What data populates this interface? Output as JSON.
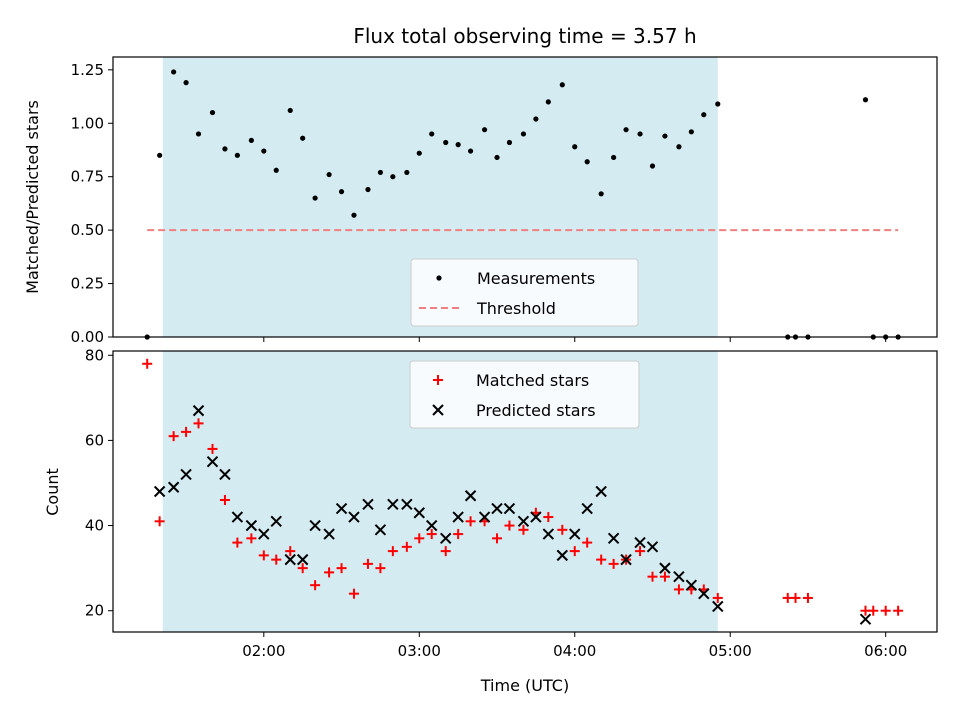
{
  "chart_data": [
    {
      "type": "scatter",
      "title": "Flux total observing time = 3.57 h",
      "xlabel": "",
      "ylabel": "Matched/Predicted stars",
      "x_unit": "hours UTC",
      "xlim": [
        1.03,
        6.33
      ],
      "ylim": [
        0,
        1.31
      ],
      "yticks": [
        0,
        0.25,
        0.5,
        0.75,
        1.0,
        1.25
      ],
      "ytick_labels": [
        "0.00",
        "0.25",
        "0.50",
        "0.75",
        "1.00",
        "1.25"
      ],
      "observing_window": [
        1.35,
        4.92
      ],
      "observing_window_color": "#add8e6",
      "legend_position": "lower-center",
      "series": [
        {
          "name": "Measurements",
          "style": "dot",
          "color": "#000000",
          "points": [
            [
              1.25,
              0.0
            ],
            [
              1.33,
              0.85
            ],
            [
              1.42,
              1.24
            ],
            [
              1.5,
              1.19
            ],
            [
              1.58,
              0.95
            ],
            [
              1.67,
              1.05
            ],
            [
              1.75,
              0.88
            ],
            [
              1.83,
              0.85
            ],
            [
              1.92,
              0.92
            ],
            [
              2.0,
              0.87
            ],
            [
              2.08,
              0.78
            ],
            [
              2.17,
              1.06
            ],
            [
              2.25,
              0.93
            ],
            [
              2.33,
              0.65
            ],
            [
              2.42,
              0.76
            ],
            [
              2.5,
              0.68
            ],
            [
              2.58,
              0.57
            ],
            [
              2.67,
              0.69
            ],
            [
              2.75,
              0.77
            ],
            [
              2.83,
              0.75
            ],
            [
              2.92,
              0.77
            ],
            [
              3.0,
              0.86
            ],
            [
              3.08,
              0.95
            ],
            [
              3.17,
              0.91
            ],
            [
              3.25,
              0.9
            ],
            [
              3.33,
              0.87
            ],
            [
              3.42,
              0.97
            ],
            [
              3.5,
              0.84
            ],
            [
              3.58,
              0.91
            ],
            [
              3.67,
              0.95
            ],
            [
              3.75,
              1.02
            ],
            [
              3.83,
              1.1
            ],
            [
              3.92,
              1.18
            ],
            [
              4.0,
              0.89
            ],
            [
              4.08,
              0.82
            ],
            [
              4.17,
              0.67
            ],
            [
              4.25,
              0.84
            ],
            [
              4.33,
              0.97
            ],
            [
              4.42,
              0.95
            ],
            [
              4.5,
              0.8
            ],
            [
              4.58,
              0.94
            ],
            [
              4.67,
              0.89
            ],
            [
              4.75,
              0.96
            ],
            [
              4.83,
              1.04
            ],
            [
              4.92,
              1.09
            ],
            [
              5.37,
              0.0
            ],
            [
              5.42,
              0.0
            ],
            [
              5.5,
              0.0
            ],
            [
              5.87,
              1.11
            ],
            [
              5.92,
              0.0
            ],
            [
              6.0,
              0.0
            ],
            [
              6.08,
              0.0
            ]
          ]
        },
        {
          "name": "Threshold",
          "style": "dashed-line",
          "color": "#f08080",
          "points": [
            [
              1.25,
              0.5
            ],
            [
              6.08,
              0.5
            ]
          ]
        }
      ]
    },
    {
      "type": "scatter",
      "title": "",
      "xlabel": "Time (UTC)",
      "ylabel": "Count",
      "x_unit": "hours UTC",
      "xlim": [
        1.03,
        6.33
      ],
      "ylim": [
        15,
        81
      ],
      "yticks": [
        20,
        40,
        60,
        80
      ],
      "ytick_labels": [
        "20",
        "40",
        "60",
        "80"
      ],
      "xticks": [
        2,
        3,
        4,
        5,
        6
      ],
      "xtick_labels": [
        "02:00",
        "03:00",
        "04:00",
        "05:00",
        "06:00"
      ],
      "observing_window": [
        1.35,
        4.92
      ],
      "observing_window_color": "#add8e6",
      "legend_position": "upper-center",
      "series": [
        {
          "name": "Matched stars",
          "marker": "plus",
          "color": "#ff0000",
          "points": [
            [
              1.25,
              78
            ],
            [
              1.33,
              41
            ],
            [
              1.42,
              61
            ],
            [
              1.5,
              62
            ],
            [
              1.58,
              64
            ],
            [
              1.67,
              58
            ],
            [
              1.75,
              46
            ],
            [
              1.83,
              36
            ],
            [
              1.92,
              37
            ],
            [
              2.0,
              33
            ],
            [
              2.08,
              32
            ],
            [
              2.17,
              34
            ],
            [
              2.25,
              30
            ],
            [
              2.33,
              26
            ],
            [
              2.42,
              29
            ],
            [
              2.5,
              30
            ],
            [
              2.58,
              24
            ],
            [
              2.67,
              31
            ],
            [
              2.75,
              30
            ],
            [
              2.83,
              34
            ],
            [
              2.92,
              35
            ],
            [
              3.0,
              37
            ],
            [
              3.08,
              38
            ],
            [
              3.17,
              34
            ],
            [
              3.25,
              38
            ],
            [
              3.33,
              41
            ],
            [
              3.42,
              41
            ],
            [
              3.5,
              37
            ],
            [
              3.58,
              40
            ],
            [
              3.67,
              39
            ],
            [
              3.75,
              43
            ],
            [
              3.83,
              42
            ],
            [
              3.92,
              39
            ],
            [
              4.0,
              34
            ],
            [
              4.08,
              36
            ],
            [
              4.17,
              32
            ],
            [
              4.25,
              31
            ],
            [
              4.33,
              32
            ],
            [
              4.42,
              34
            ],
            [
              4.5,
              28
            ],
            [
              4.58,
              28
            ],
            [
              4.67,
              25
            ],
            [
              4.75,
              25
            ],
            [
              4.83,
              25
            ],
            [
              4.92,
              23
            ],
            [
              5.37,
              23
            ],
            [
              5.42,
              23
            ],
            [
              5.5,
              23
            ],
            [
              5.87,
              20
            ],
            [
              5.92,
              20
            ],
            [
              6.0,
              20
            ],
            [
              6.08,
              20
            ]
          ]
        },
        {
          "name": "Predicted stars",
          "marker": "x",
          "color": "#000000",
          "points": [
            [
              1.33,
              48
            ],
            [
              1.42,
              49
            ],
            [
              1.5,
              52
            ],
            [
              1.58,
              67
            ],
            [
              1.67,
              55
            ],
            [
              1.75,
              52
            ],
            [
              1.83,
              42
            ],
            [
              1.92,
              40
            ],
            [
              2.0,
              38
            ],
            [
              2.08,
              41
            ],
            [
              2.17,
              32
            ],
            [
              2.25,
              32
            ],
            [
              2.33,
              40
            ],
            [
              2.42,
              38
            ],
            [
              2.5,
              44
            ],
            [
              2.58,
              42
            ],
            [
              2.67,
              45
            ],
            [
              2.75,
              39
            ],
            [
              2.83,
              45
            ],
            [
              2.92,
              45
            ],
            [
              3.0,
              43
            ],
            [
              3.08,
              40
            ],
            [
              3.17,
              37
            ],
            [
              3.25,
              42
            ],
            [
              3.33,
              47
            ],
            [
              3.42,
              42
            ],
            [
              3.5,
              44
            ],
            [
              3.58,
              44
            ],
            [
              3.67,
              41
            ],
            [
              3.75,
              42
            ],
            [
              3.83,
              38
            ],
            [
              3.92,
              33
            ],
            [
              4.0,
              38
            ],
            [
              4.08,
              44
            ],
            [
              4.17,
              48
            ],
            [
              4.25,
              37
            ],
            [
              4.33,
              32
            ],
            [
              4.42,
              36
            ],
            [
              4.5,
              35
            ],
            [
              4.58,
              30
            ],
            [
              4.67,
              28
            ],
            [
              4.75,
              26
            ],
            [
              4.83,
              24
            ],
            [
              4.92,
              21
            ],
            [
              5.87,
              18
            ]
          ]
        }
      ]
    }
  ]
}
